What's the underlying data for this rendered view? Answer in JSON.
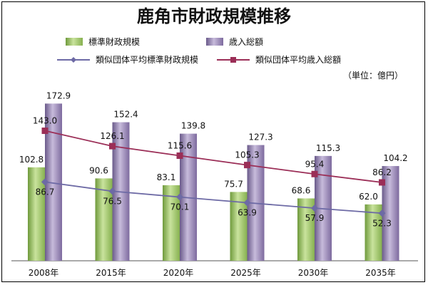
{
  "chart_data": {
    "type": "bar",
    "title": "鹿角市財政規模推移",
    "unit_note": "（単位：億円）",
    "categories": [
      "2008年",
      "2015年",
      "2020年",
      "2025年",
      "2030年",
      "2035年"
    ],
    "bar_series": [
      {
        "name": "標準財政規模",
        "values": [
          102.8,
          90.6,
          83.1,
          75.7,
          68.6,
          62.0
        ],
        "labels": [
          "102.8",
          "90.6",
          "83.1",
          "75.7",
          "68.6",
          "62.0"
        ],
        "color": "#9bc264"
      },
      {
        "name": "歳入総額",
        "values": [
          172.9,
          152.4,
          139.8,
          127.3,
          115.3,
          104.2
        ],
        "labels": [
          "172.9",
          "152.4",
          "139.8",
          "127.3",
          "115.3",
          "104.2"
        ],
        "color": "#8d7aa8"
      }
    ],
    "line_series": [
      {
        "name": "類似団体平均標準財政規模",
        "values": [
          86.7,
          76.5,
          70.1,
          63.9,
          57.9,
          52.3
        ],
        "labels": [
          "86.7",
          "76.5",
          "70.1",
          "63.9",
          "57.9",
          "52.3"
        ],
        "color": "#6d6aa5",
        "marker": "diamond"
      },
      {
        "name": "類似団体平均歳入総額",
        "values": [
          143.0,
          126.1,
          115.6,
          105.3,
          95.4,
          86.2
        ],
        "labels": [
          "143.0",
          "126.1",
          "115.6",
          "105.3",
          "95.4",
          "86.2"
        ],
        "color": "#9b2e57",
        "marker": "square"
      }
    ],
    "ylim": [
      0,
      190
    ],
    "grid": false,
    "legend_position": "top"
  }
}
